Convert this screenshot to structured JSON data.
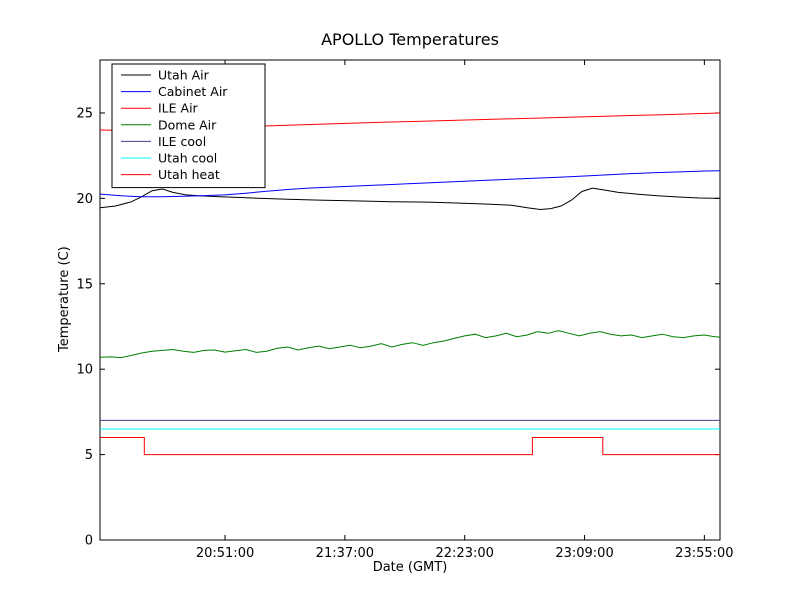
{
  "figure": {
    "title": "APOLLO Temperatures",
    "xlabel": "Date (GMT)",
    "ylabel": "Temperature (C)"
  },
  "chart_data": {
    "type": "line",
    "title": "APOLLO Temperatures",
    "xlabel": "Date (GMT)",
    "ylabel": "Temperature (C)",
    "x_unit": "minutes (0 = left edge of plot, ~20:03 GMT)",
    "xlim": [
      0,
      238
    ],
    "ylim": [
      0,
      28.1
    ],
    "yticks": [
      0,
      5,
      10,
      15,
      20,
      25
    ],
    "xticks": [
      {
        "x": 48,
        "label": "20:51:00"
      },
      {
        "x": 94,
        "label": "21:37:00"
      },
      {
        "x": 140,
        "label": "22:23:00"
      },
      {
        "x": 186,
        "label": "23:09:00"
      },
      {
        "x": 232,
        "label": "23:55:00"
      }
    ],
    "grid": false,
    "legend_position": "upper left",
    "series": [
      {
        "name": "Utah Air",
        "color": "#000000",
        "points": [
          [
            0,
            19.45
          ],
          [
            6,
            19.55
          ],
          [
            12,
            19.8
          ],
          [
            16,
            20.1
          ],
          [
            20,
            20.45
          ],
          [
            24,
            20.55
          ],
          [
            28,
            20.35
          ],
          [
            33,
            20.2
          ],
          [
            38,
            20.15
          ],
          [
            46,
            20.1
          ],
          [
            54,
            20.05
          ],
          [
            62,
            20.0
          ],
          [
            72,
            19.95
          ],
          [
            84,
            19.9
          ],
          [
            98,
            19.85
          ],
          [
            112,
            19.8
          ],
          [
            126,
            19.78
          ],
          [
            138,
            19.72
          ],
          [
            150,
            19.65
          ],
          [
            158,
            19.6
          ],
          [
            164,
            19.45
          ],
          [
            169,
            19.35
          ],
          [
            173,
            19.4
          ],
          [
            177,
            19.55
          ],
          [
            181,
            19.9
          ],
          [
            185,
            20.4
          ],
          [
            189,
            20.6
          ],
          [
            193,
            20.5
          ],
          [
            199,
            20.35
          ],
          [
            206,
            20.25
          ],
          [
            214,
            20.15
          ],
          [
            222,
            20.08
          ],
          [
            230,
            20.02
          ],
          [
            238,
            20.0
          ]
        ]
      },
      {
        "name": "Cabinet Air",
        "color": "#0000ff",
        "points": [
          [
            0,
            20.25
          ],
          [
            8,
            20.15
          ],
          [
            16,
            20.1
          ],
          [
            24,
            20.1
          ],
          [
            32,
            20.12
          ],
          [
            40,
            20.16
          ],
          [
            48,
            20.2
          ],
          [
            56,
            20.3
          ],
          [
            64,
            20.42
          ],
          [
            72,
            20.52
          ],
          [
            80,
            20.6
          ],
          [
            92,
            20.68
          ],
          [
            104,
            20.76
          ],
          [
            116,
            20.84
          ],
          [
            128,
            20.92
          ],
          [
            140,
            21.0
          ],
          [
            152,
            21.08
          ],
          [
            164,
            21.16
          ],
          [
            176,
            21.24
          ],
          [
            188,
            21.32
          ],
          [
            200,
            21.42
          ],
          [
            212,
            21.5
          ],
          [
            224,
            21.56
          ],
          [
            232,
            21.6
          ],
          [
            238,
            21.62
          ]
        ]
      },
      {
        "name": "ILE Air",
        "color": "#ff0000",
        "points": [
          [
            0,
            24.0
          ],
          [
            10,
            23.97
          ],
          [
            20,
            23.96
          ],
          [
            30,
            24.0
          ],
          [
            40,
            24.07
          ],
          [
            50,
            24.15
          ],
          [
            60,
            24.22
          ],
          [
            72,
            24.28
          ],
          [
            84,
            24.34
          ],
          [
            96,
            24.4
          ],
          [
            108,
            24.45
          ],
          [
            120,
            24.5
          ],
          [
            132,
            24.55
          ],
          [
            144,
            24.6
          ],
          [
            156,
            24.65
          ],
          [
            168,
            24.7
          ],
          [
            180,
            24.75
          ],
          [
            192,
            24.8
          ],
          [
            204,
            24.85
          ],
          [
            216,
            24.9
          ],
          [
            228,
            24.95
          ],
          [
            238,
            25.0
          ]
        ]
      },
      {
        "name": "Dome Air",
        "color": "#007f00",
        "points": [
          [
            0,
            10.7
          ],
          [
            4,
            10.72
          ],
          [
            8,
            10.68
          ],
          [
            12,
            10.8
          ],
          [
            16,
            10.95
          ],
          [
            20,
            11.05
          ],
          [
            24,
            11.1
          ],
          [
            28,
            11.15
          ],
          [
            32,
            11.05
          ],
          [
            36,
            10.98
          ],
          [
            40,
            11.1
          ],
          [
            44,
            11.12
          ],
          [
            48,
            11.0
          ],
          [
            52,
            11.08
          ],
          [
            56,
            11.15
          ],
          [
            60,
            10.98
          ],
          [
            64,
            11.05
          ],
          [
            68,
            11.22
          ],
          [
            72,
            11.3
          ],
          [
            76,
            11.12
          ],
          [
            80,
            11.25
          ],
          [
            84,
            11.35
          ],
          [
            88,
            11.2
          ],
          [
            92,
            11.3
          ],
          [
            96,
            11.4
          ],
          [
            100,
            11.25
          ],
          [
            104,
            11.35
          ],
          [
            108,
            11.5
          ],
          [
            112,
            11.3
          ],
          [
            116,
            11.45
          ],
          [
            120,
            11.55
          ],
          [
            124,
            11.4
          ],
          [
            128,
            11.55
          ],
          [
            132,
            11.65
          ],
          [
            136,
            11.8
          ],
          [
            140,
            11.95
          ],
          [
            144,
            12.05
          ],
          [
            148,
            11.85
          ],
          [
            152,
            11.95
          ],
          [
            156,
            12.1
          ],
          [
            160,
            11.9
          ],
          [
            164,
            12.0
          ],
          [
            168,
            12.2
          ],
          [
            172,
            12.1
          ],
          [
            176,
            12.25
          ],
          [
            180,
            12.1
          ],
          [
            184,
            11.95
          ],
          [
            188,
            12.1
          ],
          [
            192,
            12.2
          ],
          [
            196,
            12.05
          ],
          [
            200,
            11.95
          ],
          [
            204,
            12.0
          ],
          [
            208,
            11.85
          ],
          [
            212,
            11.95
          ],
          [
            216,
            12.05
          ],
          [
            220,
            11.9
          ],
          [
            224,
            11.85
          ],
          [
            228,
            11.95
          ],
          [
            232,
            12.0
          ],
          [
            236,
            11.9
          ],
          [
            238,
            11.88
          ]
        ]
      },
      {
        "name": "ILE cool",
        "color": "#483d8b",
        "points": [
          [
            0,
            7.0
          ],
          [
            238,
            7.0
          ]
        ]
      },
      {
        "name": "Utah cool",
        "color": "#00ffff",
        "points": [
          [
            0,
            6.5
          ],
          [
            238,
            6.5
          ]
        ]
      },
      {
        "name": "Utah heat",
        "color": "#ff0000",
        "points": [
          [
            0,
            6.0
          ],
          [
            17,
            6.0
          ],
          [
            17,
            5.0
          ],
          [
            166,
            5.0
          ],
          [
            166,
            6.0
          ],
          [
            193,
            6.0
          ],
          [
            193,
            5.0
          ],
          [
            238,
            5.0
          ]
        ]
      }
    ]
  }
}
